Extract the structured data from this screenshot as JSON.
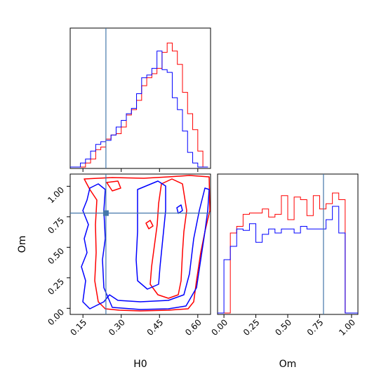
{
  "chart_data": {
    "type": "corner",
    "parameters": [
      "H0",
      "Om"
    ],
    "truth": {
      "H0": 0.24,
      "Om": 0.78,
      "color": "#4477aa"
    },
    "series": [
      {
        "color": "#ff0000"
      },
      {
        "color": "#0000ff"
      }
    ],
    "panels": {
      "h0_hist": {
        "xlim": [
          0.1,
          0.65
        ],
        "bins": [
          0.1,
          0.12,
          0.14,
          0.16,
          0.18,
          0.2,
          0.22,
          0.24,
          0.26,
          0.28,
          0.3,
          0.32,
          0.34,
          0.36,
          0.38,
          0.4,
          0.42,
          0.44,
          0.46,
          0.48,
          0.5,
          0.52,
          0.54,
          0.56,
          0.58,
          0.6,
          0.62,
          0.64
        ],
        "red": [
          0,
          0,
          0,
          0.3,
          0.6,
          1.3,
          1.5,
          2.1,
          2.4,
          2.5,
          3.0,
          3.9,
          4.3,
          5.0,
          6.1,
          6.7,
          7.0,
          7.4,
          8.6,
          9.3,
          8.7,
          7.7,
          5.6,
          4.0,
          2.8,
          1.2,
          0.0
        ],
        "blue": [
          0,
          0,
          0.3,
          0.6,
          1.2,
          1.7,
          1.9,
          2.0,
          2.4,
          3.0,
          3.5,
          4.0,
          4.4,
          5.5,
          6.7,
          6.9,
          7.4,
          8.7,
          7.3,
          7.1,
          5.2,
          4.3,
          2.7,
          1.1,
          0.3,
          0.0,
          0.0
        ],
        "ylim": [
          0,
          10
        ]
      },
      "om_hist": {
        "xlim": [
          -0.05,
          1.05
        ],
        "bins": [
          -0.05,
          0.0,
          0.05,
          0.1,
          0.15,
          0.2,
          0.25,
          0.3,
          0.35,
          0.4,
          0.45,
          0.5,
          0.55,
          0.6,
          0.65,
          0.7,
          0.75,
          0.8,
          0.85,
          0.9,
          0.95,
          1.0,
          1.05
        ],
        "red": [
          0,
          0,
          6.0,
          6.5,
          7.4,
          7.5,
          7.5,
          7.8,
          7.2,
          7.4,
          8.8,
          7.0,
          8.7,
          8.5,
          7.3,
          8.8,
          7.8,
          8.2,
          9.0,
          8.5,
          0,
          0
        ],
        "blue": [
          0,
          4.0,
          5.0,
          6.3,
          6.2,
          6.7,
          5.3,
          5.9,
          6.3,
          6.0,
          6.3,
          6.3,
          6.0,
          6.5,
          6.3,
          6.3,
          6.3,
          7.0,
          8.0,
          6.0,
          0,
          0
        ],
        "ylim": [
          0,
          10
        ]
      },
      "joint": {
        "xlim": [
          0.1,
          0.65
        ],
        "ylim": [
          -0.05,
          1.1
        ]
      }
    },
    "axes": {
      "h0_ticks": [
        "0.15",
        "0.30",
        "0.45",
        "0.60"
      ],
      "h0_tick_values": [
        0.15,
        0.3,
        0.45,
        0.6
      ],
      "om_ticks": [
        "0.00",
        "0.25",
        "0.50",
        "0.75",
        "1.00"
      ],
      "om_tick_values": [
        0.0,
        0.25,
        0.5,
        0.75,
        1.0
      ],
      "xlabel_joint": "H0",
      "ylabel_joint": "Om",
      "xlabel_om": "Om"
    }
  }
}
